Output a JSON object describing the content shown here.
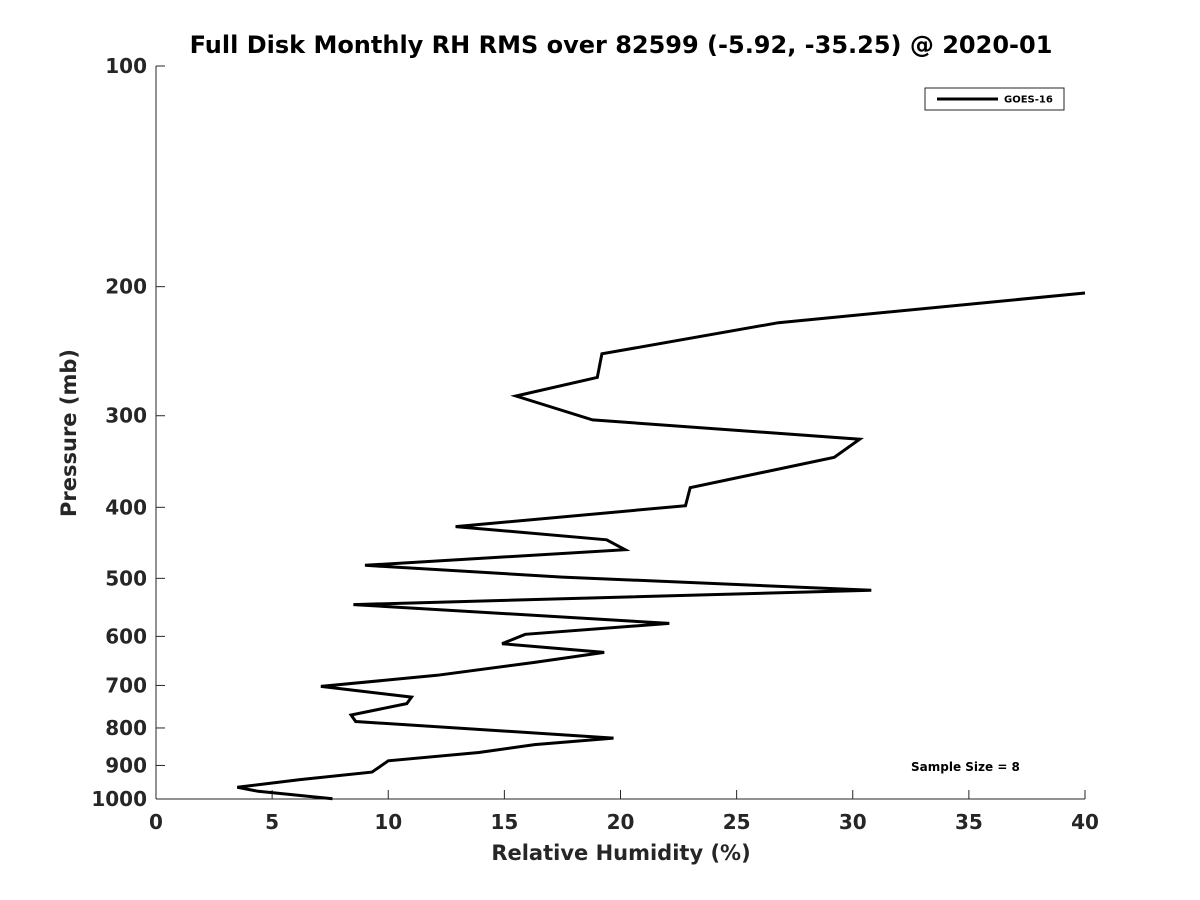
{
  "chart_data": {
    "type": "line",
    "title": "Full Disk Monthly RH RMS over 82599 (-5.92, -35.25) @ 2020-01",
    "xlabel": "Relative Humidity (%)",
    "ylabel": "Pressure (mb)",
    "xlim": [
      0,
      40
    ],
    "ylim": [
      100,
      1000
    ],
    "y_scale": "log",
    "y_reversed": true,
    "grid": false,
    "legend_position": "top-right",
    "x_ticks": [
      "0",
      "5",
      "10",
      "15",
      "20",
      "25",
      "30",
      "35",
      "40"
    ],
    "y_ticks": [
      "100",
      "200",
      "300",
      "400",
      "500",
      "600",
      "700",
      "800",
      "900",
      "1000"
    ],
    "series": [
      {
        "name": "GOES-16",
        "color": "#000000",
        "points": [
          [
            40.0,
            204
          ],
          [
            26.8,
            224
          ],
          [
            19.2,
            247
          ],
          [
            19.0,
            266
          ],
          [
            15.5,
            282
          ],
          [
            18.8,
            304
          ],
          [
            30.3,
            323
          ],
          [
            29.2,
            342
          ],
          [
            23.0,
            376
          ],
          [
            22.8,
            398
          ],
          [
            12.9,
            425
          ],
          [
            19.4,
            443
          ],
          [
            20.2,
            457
          ],
          [
            9.0,
            480
          ],
          [
            17.5,
            498
          ],
          [
            30.8,
            519
          ],
          [
            8.5,
            543
          ],
          [
            22.1,
            576
          ],
          [
            15.9,
            596
          ],
          [
            14.9,
            614
          ],
          [
            19.3,
            631
          ],
          [
            16.3,
            651
          ],
          [
            12.1,
            678
          ],
          [
            7.1,
            702
          ],
          [
            11.0,
            726
          ],
          [
            10.8,
            741
          ],
          [
            8.4,
            768
          ],
          [
            8.6,
            784
          ],
          [
            19.7,
            826
          ],
          [
            16.3,
            843
          ],
          [
            13.9,
            864
          ],
          [
            10.0,
            887
          ],
          [
            9.3,
            919
          ],
          [
            6.2,
            941
          ],
          [
            3.5,
            964
          ],
          [
            4.4,
            976
          ],
          [
            7.6,
            999
          ]
        ]
      }
    ],
    "annotation": "Sample Size = 8"
  }
}
